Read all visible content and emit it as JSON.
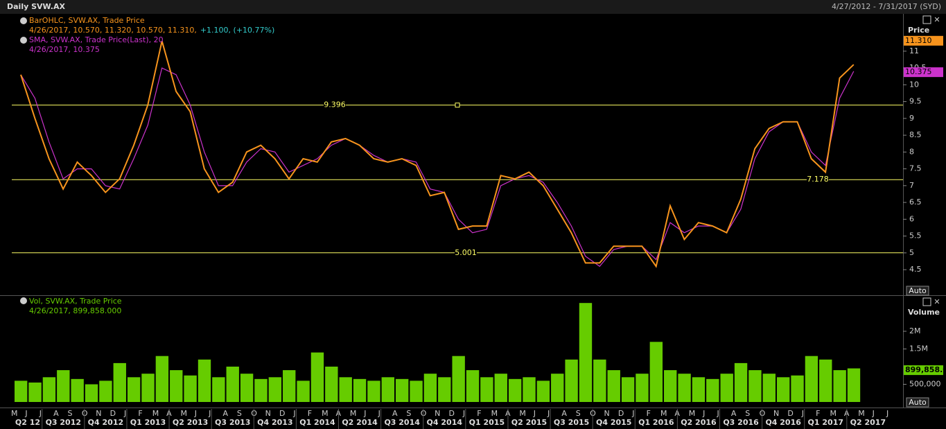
{
  "header": {
    "title": "Daily SVW.AX",
    "range": "4/27/2012 - 7/31/2017 (SYD)"
  },
  "time_axis": {
    "months": [
      "M",
      "J",
      "J",
      "A",
      "S",
      "O",
      "N",
      "D",
      "J",
      "F",
      "M",
      "A",
      "M",
      "J",
      "J",
      "A",
      "S",
      "O",
      "N",
      "D",
      "J",
      "F",
      "M",
      "A",
      "M",
      "J",
      "J",
      "A",
      "S",
      "O",
      "N",
      "D",
      "J",
      "F",
      "M",
      "A",
      "M",
      "J",
      "J",
      "A",
      "S",
      "O",
      "N",
      "D",
      "J",
      "F",
      "M",
      "A",
      "M",
      "J",
      "J",
      "A",
      "S",
      "O",
      "N",
      "D",
      "J",
      "F",
      "M",
      "A",
      "M",
      "J",
      "J"
    ],
    "quarters": [
      "Q2 12",
      "Q3 2012",
      "Q4 2012",
      "Q1 2013",
      "Q2 2013",
      "Q3 2013",
      "Q4 2013",
      "Q1 2014",
      "Q2 2014",
      "Q3 2014",
      "Q4 2014",
      "Q1 2015",
      "Q2 2015",
      "Q3 2015",
      "Q4 2015",
      "Q1 2016",
      "Q2 2016",
      "Q3 2016",
      "Q4 2016",
      "Q1 2017",
      "Q2 2017"
    ]
  },
  "chart_data": [
    {
      "type": "line",
      "axis_title": "Price",
      "auto_button": "Auto",
      "x": [
        "2012-05",
        "2012-06",
        "2012-07",
        "2012-08",
        "2012-09",
        "2012-10",
        "2012-11",
        "2012-12",
        "2013-01",
        "2013-02",
        "2013-03",
        "2013-04",
        "2013-05",
        "2013-06",
        "2013-07",
        "2013-08",
        "2013-09",
        "2013-10",
        "2013-11",
        "2013-12",
        "2014-01",
        "2014-02",
        "2014-03",
        "2014-04",
        "2014-05",
        "2014-06",
        "2014-07",
        "2014-08",
        "2014-09",
        "2014-10",
        "2014-11",
        "2014-12",
        "2015-01",
        "2015-02",
        "2015-03",
        "2015-04",
        "2015-05",
        "2015-06",
        "2015-07",
        "2015-08",
        "2015-09",
        "2015-10",
        "2015-11",
        "2015-12",
        "2016-01",
        "2016-02",
        "2016-03",
        "2016-04",
        "2016-05",
        "2016-06",
        "2016-07",
        "2016-08",
        "2016-09",
        "2016-10",
        "2016-11",
        "2016-12",
        "2017-01",
        "2017-02",
        "2017-03",
        "2017-04"
      ],
      "ylim": [
        3.76,
        12.11
      ],
      "yticks": [
        4.5,
        5,
        5.5,
        6,
        6.5,
        7,
        7.5,
        8,
        8.5,
        9,
        9.5,
        10,
        10.5,
        11
      ],
      "levels": [
        9.396,
        7.178,
        5.001
      ],
      "level_color": "#ffff66",
      "series": [
        {
          "name": "BarOHLC, SVW.AX, Trade Price",
          "color": "#f7941d",
          "detail": "4/26/2017, 10.570, 11.320, 10.570, 11.310,",
          "change": "+1.100, (+10.77%)",
          "last_value": 11.31,
          "last_value_label": "11.310",
          "values": [
            10.3,
            9.0,
            7.8,
            6.9,
            7.7,
            7.3,
            6.8,
            7.2,
            8.2,
            9.4,
            11.3,
            9.8,
            9.2,
            7.5,
            6.8,
            7.1,
            8.0,
            8.2,
            7.8,
            7.2,
            7.8,
            7.7,
            8.3,
            8.4,
            8.2,
            7.8,
            7.7,
            7.8,
            7.6,
            6.7,
            6.8,
            5.7,
            5.8,
            5.8,
            7.3,
            7.2,
            7.4,
            7.0,
            6.3,
            5.6,
            4.7,
            4.7,
            5.2,
            5.2,
            5.2,
            4.6,
            6.4,
            5.4,
            5.9,
            5.8,
            5.6,
            6.6,
            8.1,
            8.7,
            8.9,
            8.9,
            7.8,
            7.4,
            10.2,
            10.6
          ]
        },
        {
          "name": "SMA, SVW.AX, Trade Price(Last), 20",
          "color": "#cc33cc",
          "detail": "4/26/2017, 10.375",
          "last_value": 10.375,
          "last_value_label": "10.375",
          "values": [
            10.3,
            9.6,
            8.3,
            7.2,
            7.5,
            7.5,
            7.0,
            6.9,
            7.8,
            8.8,
            10.5,
            10.3,
            9.4,
            8.0,
            7.0,
            7.0,
            7.7,
            8.1,
            8.0,
            7.4,
            7.6,
            7.8,
            8.2,
            8.4,
            8.2,
            7.9,
            7.7,
            7.8,
            7.7,
            6.9,
            6.8,
            6.0,
            5.6,
            5.7,
            7.0,
            7.2,
            7.3,
            7.1,
            6.5,
            5.8,
            4.9,
            4.6,
            5.1,
            5.2,
            5.2,
            4.8,
            5.9,
            5.6,
            5.8,
            5.8,
            5.6,
            6.3,
            7.8,
            8.6,
            8.9,
            8.9,
            8.0,
            7.6,
            9.6,
            10.4
          ]
        }
      ]
    },
    {
      "type": "bar",
      "axis_title": "Volume",
      "auto_button": "Auto",
      "name": "Vol, SVW.AX, Trade Price",
      "detail": "4/26/2017, 899,858.000",
      "color": "#66cc00",
      "last_value": 899858,
      "last_value_label": "899,858.0",
      "x": [
        "2012-05",
        "2012-06",
        "2012-07",
        "2012-08",
        "2012-09",
        "2012-10",
        "2012-11",
        "2012-12",
        "2013-01",
        "2013-02",
        "2013-03",
        "2013-04",
        "2013-05",
        "2013-06",
        "2013-07",
        "2013-08",
        "2013-09",
        "2013-10",
        "2013-11",
        "2013-12",
        "2014-01",
        "2014-02",
        "2014-03",
        "2014-04",
        "2014-05",
        "2014-06",
        "2014-07",
        "2014-08",
        "2014-09",
        "2014-10",
        "2014-11",
        "2014-12",
        "2015-01",
        "2015-02",
        "2015-03",
        "2015-04",
        "2015-05",
        "2015-06",
        "2015-07",
        "2015-08",
        "2015-09",
        "2015-10",
        "2015-11",
        "2015-12",
        "2016-01",
        "2016-02",
        "2016-03",
        "2016-04",
        "2016-05",
        "2016-06",
        "2016-07",
        "2016-08",
        "2016-09",
        "2016-10",
        "2016-11",
        "2016-12",
        "2017-01",
        "2017-02",
        "2017-03",
        "2017-04"
      ],
      "ylim": [
        0,
        2980000
      ],
      "yticks": [
        {
          "value": 500000,
          "label": "500,000"
        },
        {
          "value": 1500000,
          "label": "1.5M"
        },
        {
          "value": 2000000,
          "label": "2M"
        }
      ],
      "values": [
        600000,
        550000,
        700000,
        900000,
        650000,
        500000,
        600000,
        1100000,
        700000,
        800000,
        1300000,
        900000,
        750000,
        1200000,
        700000,
        1000000,
        800000,
        650000,
        700000,
        900000,
        600000,
        1400000,
        1000000,
        700000,
        650000,
        600000,
        700000,
        650000,
        600000,
        800000,
        700000,
        1300000,
        900000,
        700000,
        800000,
        650000,
        700000,
        600000,
        800000,
        1200000,
        2800000,
        1200000,
        900000,
        700000,
        800000,
        1700000,
        900000,
        800000,
        700000,
        650000,
        800000,
        1100000,
        900000,
        800000,
        700000,
        750000,
        1300000,
        1200000,
        900000,
        950000
      ]
    }
  ]
}
